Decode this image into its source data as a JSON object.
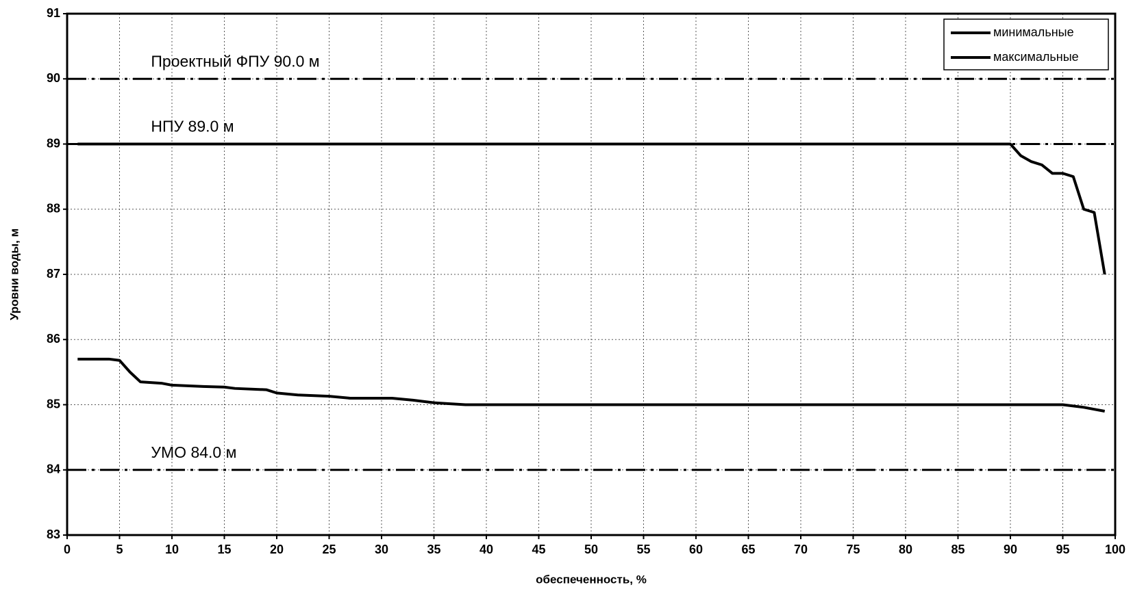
{
  "chart_data": {
    "type": "line",
    "x_label": "обеспеченность, %",
    "y_label": "Уровни воды, м",
    "xlim": [
      0,
      100
    ],
    "xticks": [
      0,
      5,
      10,
      15,
      20,
      25,
      30,
      35,
      40,
      45,
      50,
      55,
      60,
      65,
      70,
      75,
      80,
      85,
      90,
      95,
      100
    ],
    "ylim": [
      83,
      91
    ],
    "yticks": [
      83,
      84,
      85,
      86,
      87,
      88,
      89,
      90,
      91
    ],
    "grid": true,
    "legend": "top-right",
    "series": [
      {
        "name": "минимальные",
        "color": "#000000",
        "x": [
          1,
          4,
          5,
          6,
          7,
          9,
          10,
          13,
          15,
          16,
          19,
          20,
          22,
          25,
          27,
          31,
          33,
          35,
          38,
          95,
          96,
          97,
          98,
          99
        ],
        "values": [
          85.7,
          85.7,
          85.68,
          85.5,
          85.35,
          85.33,
          85.3,
          85.28,
          85.27,
          85.25,
          85.23,
          85.18,
          85.15,
          85.13,
          85.1,
          85.1,
          85.07,
          85.03,
          85.0,
          85.0,
          84.98,
          84.96,
          84.93,
          84.9
        ]
      },
      {
        "name": "максимальные",
        "color": "#000000",
        "x": [
          1,
          90,
          91,
          92,
          93,
          94,
          95,
          96,
          97,
          98,
          99
        ],
        "values": [
          89.0,
          89.0,
          88.82,
          88.73,
          88.68,
          88.55,
          88.55,
          88.5,
          88.0,
          87.95,
          87.0
        ]
      }
    ],
    "reference_lines": [
      {
        "value": 90,
        "label": "Проектный ФПУ 90.0 м"
      },
      {
        "value": 89,
        "label": "НПУ 89.0 м"
      },
      {
        "value": 84,
        "label": "УМО 84.0 м"
      }
    ]
  }
}
